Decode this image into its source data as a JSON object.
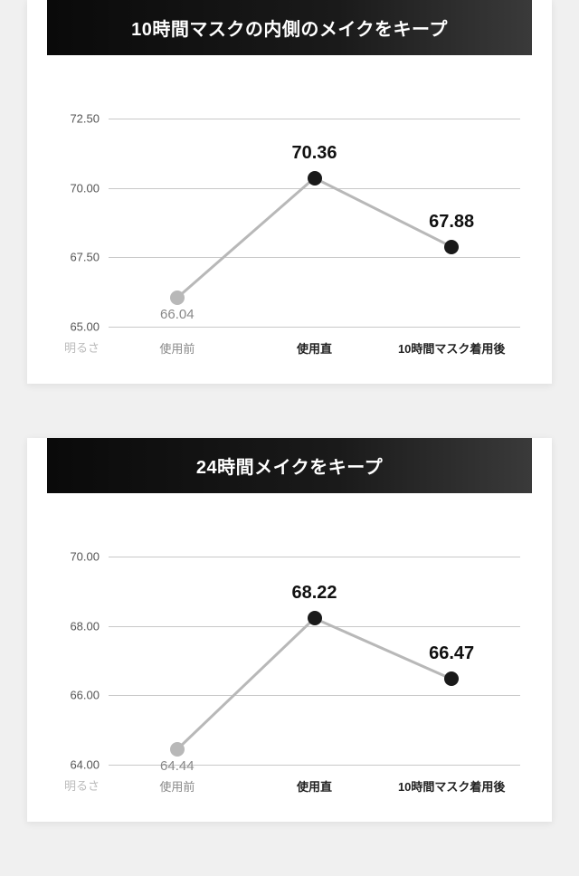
{
  "charts": [
    {
      "title": "10時間マスクの内側のメイクをキープ",
      "type": "line",
      "brightness_label": "明るさ",
      "x_labels": [
        "使用前",
        "使用直",
        "10時間マスク着用後"
      ],
      "x_label_light": [
        true,
        false,
        false
      ],
      "y_ticks": [
        65.0,
        67.5,
        70.0,
        72.5
      ],
      "y_tick_labels": [
        "65.00",
        "67.50",
        "70.00",
        "72.50"
      ],
      "y_min": 65.0,
      "y_max": 72.5,
      "points": [
        {
          "x_index": 0,
          "value": 66.04,
          "label": "66.04",
          "marker_color": "#b8b8b8",
          "label_style": "light",
          "label_offset_y": 10
        },
        {
          "x_index": 1,
          "value": 70.36,
          "label": "70.36",
          "marker_color": "#1a1a1a",
          "label_style": "bold",
          "label_offset_y": -16
        },
        {
          "x_index": 2,
          "value": 67.88,
          "label": "67.88",
          "marker_color": "#1a1a1a",
          "label_style": "bold",
          "label_offset_y": -16
        }
      ],
      "line_color": "#b8b8b8",
      "line_width": 3,
      "marker_radius": 8,
      "grid_color": "#c8c8c8",
      "background_color": "#ffffff"
    },
    {
      "title": "24時間メイクをキープ",
      "type": "line",
      "brightness_label": "明るさ",
      "x_labels": [
        "使用前",
        "使用直",
        "10時間マスク着用後"
      ],
      "x_label_light": [
        true,
        false,
        false
      ],
      "y_ticks": [
        64.0,
        66.0,
        68.0,
        70.0
      ],
      "y_tick_labels": [
        "64.00",
        "66.00",
        "68.00",
        "70.00"
      ],
      "y_min": 64.0,
      "y_max": 70.0,
      "points": [
        {
          "x_index": 0,
          "value": 64.44,
          "label": "64.44",
          "marker_color": "#b8b8b8",
          "label_style": "light",
          "label_offset_y": 10
        },
        {
          "x_index": 1,
          "value": 68.22,
          "label": "68.22",
          "marker_color": "#1a1a1a",
          "label_style": "bold",
          "label_offset_y": -16
        },
        {
          "x_index": 2,
          "value": 66.47,
          "label": "66.47",
          "marker_color": "#1a1a1a",
          "label_style": "bold",
          "label_offset_y": -16
        }
      ],
      "line_color": "#b8b8b8",
      "line_width": 3,
      "marker_radius": 8,
      "grid_color": "#c8c8c8",
      "background_color": "#ffffff"
    }
  ]
}
